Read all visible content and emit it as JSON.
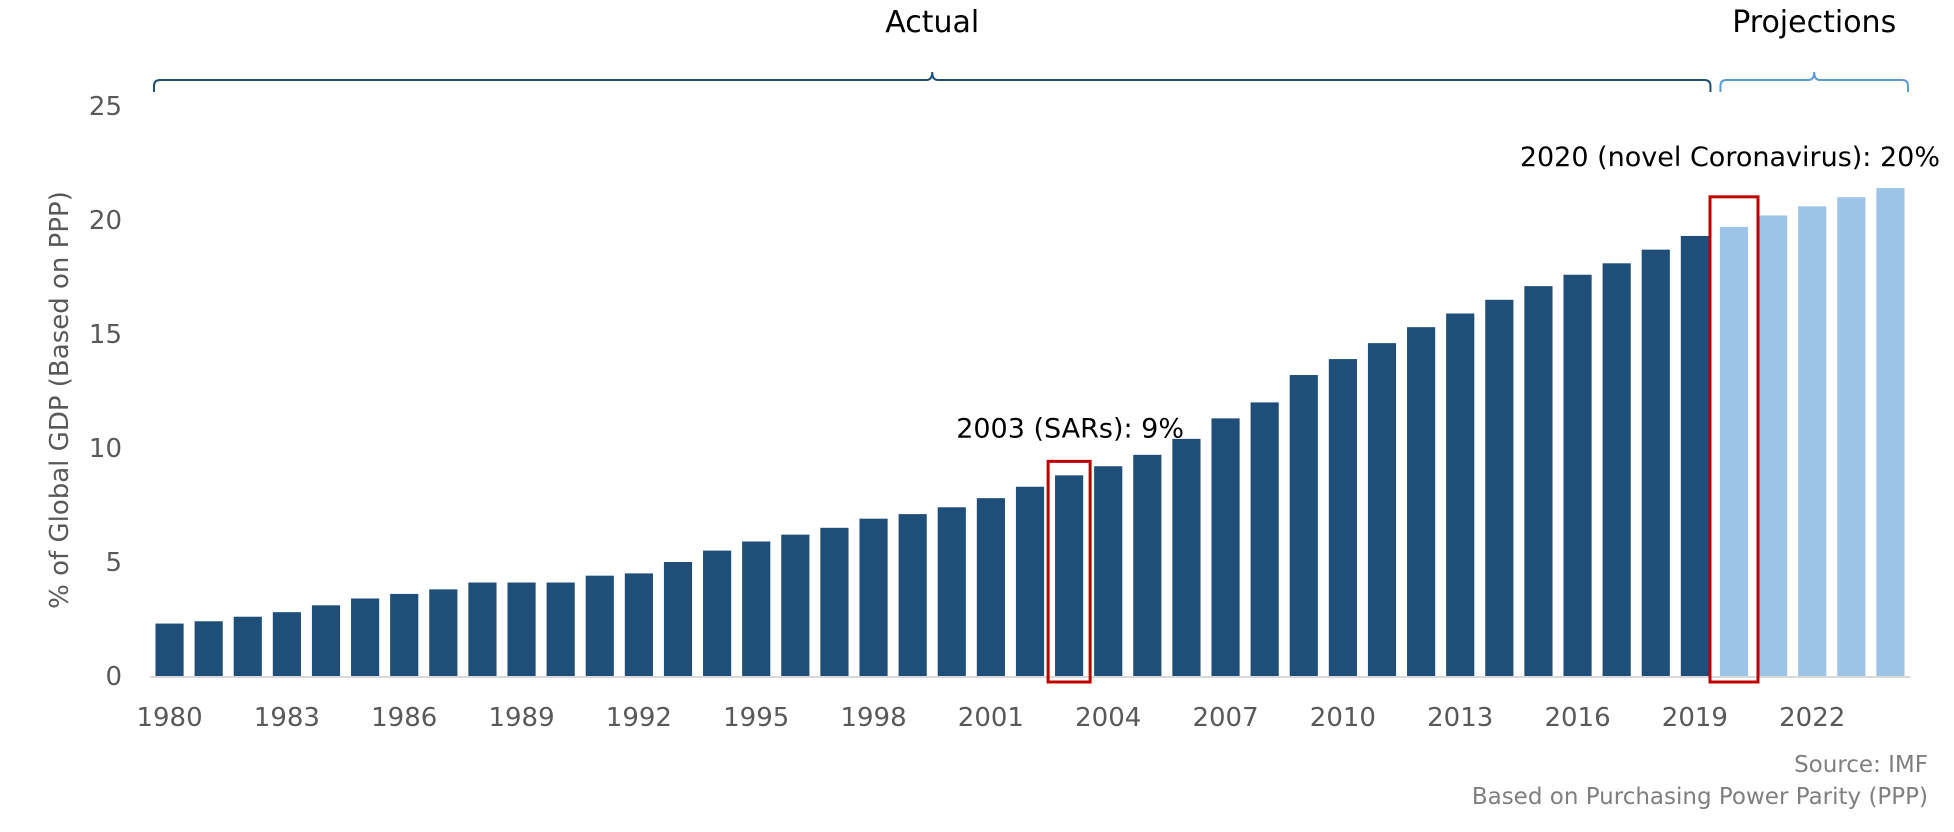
{
  "chart_data": {
    "type": "bar",
    "title": "",
    "ylabel": "% of Global GDP (Based on PPP)",
    "xlabel": "",
    "ylim": [
      0,
      25
    ],
    "yticks": [
      0,
      5,
      10,
      15,
      20,
      25
    ],
    "x_tick_labels": [
      "1980",
      "1983",
      "1986",
      "1989",
      "1992",
      "1995",
      "1998",
      "2001",
      "2004",
      "2007",
      "2010",
      "2013",
      "2016",
      "2019",
      "2022"
    ],
    "categories": [
      "1980",
      "1981",
      "1982",
      "1983",
      "1984",
      "1985",
      "1986",
      "1987",
      "1988",
      "1989",
      "1990",
      "1991",
      "1992",
      "1993",
      "1994",
      "1995",
      "1996",
      "1997",
      "1998",
      "1999",
      "2000",
      "2001",
      "2002",
      "2003",
      "2004",
      "2005",
      "2006",
      "2007",
      "2008",
      "2009",
      "2010",
      "2011",
      "2012",
      "2013",
      "2014",
      "2015",
      "2016",
      "2017",
      "2018",
      "2019",
      "2020",
      "2021",
      "2022",
      "2023",
      "2024"
    ],
    "values": [
      2.3,
      2.4,
      2.6,
      2.8,
      3.1,
      3.4,
      3.6,
      3.8,
      4.1,
      4.1,
      4.1,
      4.4,
      4.5,
      5.0,
      5.5,
      5.9,
      6.2,
      6.5,
      6.9,
      7.1,
      7.4,
      7.8,
      8.3,
      8.8,
      9.2,
      9.7,
      10.4,
      11.3,
      12.0,
      13.2,
      13.9,
      14.6,
      15.3,
      15.9,
      16.5,
      17.1,
      17.6,
      18.1,
      18.7,
      19.3,
      19.7,
      20.2,
      20.6,
      21.0,
      21.4
    ],
    "groups": [
      {
        "label": "Actual",
        "from": "1980",
        "to": "2019",
        "color": "#1f4e79"
      },
      {
        "label": "Projections",
        "from": "2020",
        "to": "2024",
        "color": "#9dc3e6"
      }
    ],
    "annotations": [
      {
        "text": "2003 (SARs): 9%",
        "category": "2003",
        "box_color": "#c00000"
      },
      {
        "text": "2020 (novel Coronavirus): 20%",
        "category": "2020",
        "box_color": "#c00000"
      }
    ],
    "bracket_colors": {
      "actual": "#1f4e79",
      "projections": "#5b9bd5"
    },
    "grid": false,
    "legend": "none"
  },
  "source_line": "Source: IMF",
  "basis_line": "Based on Purchasing Power Parity (PPP)"
}
